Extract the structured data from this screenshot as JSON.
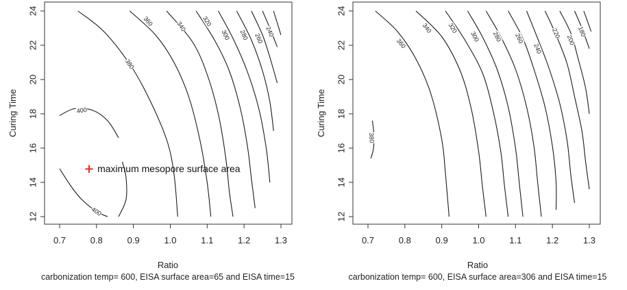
{
  "chart_data": [
    {
      "type": "contour",
      "xlabel": "Ratio",
      "ylabel": "Curing Time",
      "subtitle": "carbonization temp= 600, EISA surface area=65 and EISA time=15",
      "xlim": [
        0.7,
        1.3
      ],
      "ylim": [
        12,
        24
      ],
      "xticks": [
        "0.7",
        "0.8",
        "0.9",
        "1.0",
        "1.1",
        "1.2",
        "1.3"
      ],
      "yticks": [
        "12",
        "14",
        "16",
        "18",
        "20",
        "22",
        "24"
      ],
      "grid": false,
      "marker": {
        "x": 0.78,
        "y": 14.8,
        "symbol": "+",
        "color": "#e8291c",
        "label": "maximum mesopore surface area"
      },
      "contours": [
        {
          "level": "400",
          "label_at": [
            0.76,
            18.2
          ],
          "points": [
            [
              0.7,
              17.9
            ],
            [
              0.74,
              18.3
            ],
            [
              0.79,
              18.2
            ],
            [
              0.83,
              17.6
            ],
            [
              0.86,
              16.6
            ]
          ]
        },
        {
          "level": "400",
          "label_at": [
            0.8,
            12.3
          ],
          "points": [
            [
              0.7,
              14.8
            ],
            [
              0.73,
              13.8
            ],
            [
              0.76,
              13.0
            ],
            [
              0.8,
              12.3
            ],
            [
              0.83,
              12.0
            ]
          ]
        },
        {
          "level": "",
          "label_at": null,
          "points": [
            [
              0.86,
              12.0
            ],
            [
              0.88,
              13.0
            ],
            [
              0.88,
              14.3
            ],
            [
              0.87,
              15.2
            ]
          ]
        },
        {
          "level": "380",
          "label_at": [
            0.89,
            20.9
          ],
          "points": [
            [
              0.75,
              24.0
            ],
            [
              0.82,
              22.8
            ],
            [
              0.89,
              20.9
            ],
            [
              0.94,
              19.0
            ],
            [
              0.99,
              16.5
            ],
            [
              1.01,
              14.5
            ],
            [
              1.02,
              12.0
            ]
          ]
        },
        {
          "level": "360",
          "label_at": [
            0.94,
            23.4
          ],
          "points": [
            [
              0.89,
              24.0
            ],
            [
              0.96,
              22.6
            ],
            [
              1.01,
              21.0
            ],
            [
              1.05,
              19.0
            ],
            [
              1.08,
              16.5
            ],
            [
              1.1,
              14.0
            ],
            [
              1.11,
              12.0
            ]
          ]
        },
        {
          "level": "340",
          "label_at": [
            1.03,
            23.1
          ],
          "points": [
            [
              0.99,
              24.0
            ],
            [
              1.06,
              22.2
            ],
            [
              1.1,
              20.3
            ],
            [
              1.13,
              18.0
            ],
            [
              1.15,
              15.5
            ],
            [
              1.16,
              13.5
            ],
            [
              1.17,
              12.0
            ]
          ]
        },
        {
          "level": "320",
          "label_at": [
            1.1,
            23.4
          ],
          "points": [
            [
              1.07,
              24.0
            ],
            [
              1.12,
              22.3
            ],
            [
              1.16,
              20.5
            ],
            [
              1.19,
              18.3
            ],
            [
              1.21,
              16.0
            ],
            [
              1.22,
              14.2
            ],
            [
              1.23,
              12.5
            ]
          ]
        },
        {
          "level": "300",
          "label_at": [
            1.15,
            22.6
          ],
          "points": [
            [
              1.13,
              24.0
            ],
            [
              1.17,
              22.4
            ],
            [
              1.21,
              20.4
            ],
            [
              1.24,
              18.3
            ],
            [
              1.26,
              16.0
            ],
            [
              1.27,
              14.0
            ]
          ]
        },
        {
          "level": "280",
          "label_at": [
            1.2,
            22.6
          ],
          "points": [
            [
              1.18,
              24.0
            ],
            [
              1.22,
              22.3
            ],
            [
              1.25,
              20.5
            ],
            [
              1.27,
              18.7
            ],
            [
              1.28,
              17.0
            ]
          ]
        },
        {
          "level": "260",
          "label_at": [
            1.24,
            22.4
          ],
          "points": [
            [
              1.22,
              24.0
            ],
            [
              1.25,
              22.6
            ],
            [
              1.27,
              21.3
            ],
            [
              1.29,
              19.8
            ]
          ]
        },
        {
          "level": "240",
          "label_at": [
            1.27,
            22.8
          ],
          "points": [
            [
              1.25,
              24.0
            ],
            [
              1.27,
              23.0
            ],
            [
              1.29,
              21.9
            ]
          ]
        },
        {
          "level": "",
          "label_at": null,
          "points": [
            [
              1.28,
              24.0
            ],
            [
              1.29,
              23.3
            ],
            [
              1.3,
              22.6
            ]
          ]
        }
      ]
    },
    {
      "type": "contour",
      "xlabel": "Ratio",
      "ylabel": "Curing Time",
      "subtitle": "carbonization temp= 600, EISA surface area=306 and EISA time=15",
      "xlim": [
        0.7,
        1.3
      ],
      "ylim": [
        12,
        24
      ],
      "xticks": [
        "0.7",
        "0.8",
        "0.9",
        "1.0",
        "1.1",
        "1.2",
        "1.3"
      ],
      "yticks": [
        "12",
        "14",
        "16",
        "18",
        "20",
        "22",
        "24"
      ],
      "grid": false,
      "contours": [
        {
          "level": "380",
          "label_at": [
            0.71,
            16.6
          ],
          "points": [
            [
              0.712,
              17.6
            ],
            [
              0.716,
              16.8
            ],
            [
              0.715,
              16.0
            ],
            [
              0.708,
              15.4
            ]
          ]
        },
        {
          "level": "360",
          "label_at": [
            0.79,
            22.1
          ],
          "points": [
            [
              0.72,
              24.0
            ],
            [
              0.78,
              22.8
            ],
            [
              0.83,
              21.2
            ],
            [
              0.87,
              19.2
            ],
            [
              0.9,
              16.5
            ],
            [
              0.91,
              14.5
            ],
            [
              0.92,
              12.0
            ]
          ]
        },
        {
          "level": "340",
          "label_at": [
            0.86,
            23.0
          ],
          "points": [
            [
              0.83,
              24.0
            ],
            [
              0.9,
              22.5
            ],
            [
              0.95,
              20.5
            ],
            [
              0.98,
              18.3
            ],
            [
              1.0,
              15.8
            ],
            [
              1.01,
              13.8
            ],
            [
              1.02,
              12.0
            ]
          ]
        },
        {
          "level": "320",
          "label_at": [
            0.93,
            23.0
          ],
          "points": [
            [
              0.91,
              24.0
            ],
            [
              0.96,
              22.4
            ],
            [
              1.01,
              20.4
            ],
            [
              1.04,
              18.1
            ],
            [
              1.06,
              15.8
            ],
            [
              1.07,
              13.8
            ],
            [
              1.08,
              12.0
            ]
          ]
        },
        {
          "level": "300",
          "label_at": [
            0.99,
            22.5
          ],
          "points": [
            [
              0.97,
              24.0
            ],
            [
              1.01,
              22.5
            ],
            [
              1.05,
              20.6
            ],
            [
              1.08,
              18.4
            ],
            [
              1.1,
              16.0
            ],
            [
              1.11,
              14.0
            ],
            [
              1.12,
              12.0
            ]
          ]
        },
        {
          "level": "280",
          "label_at": [
            1.05,
            22.5
          ],
          "points": [
            [
              1.02,
              24.0
            ],
            [
              1.06,
              22.5
            ],
            [
              1.1,
              20.6
            ],
            [
              1.13,
              18.4
            ],
            [
              1.15,
              16.1
            ],
            [
              1.16,
              14.0
            ],
            [
              1.17,
              12.0
            ]
          ]
        },
        {
          "level": "260",
          "label_at": [
            1.11,
            22.4
          ],
          "points": [
            [
              1.08,
              24.0
            ],
            [
              1.12,
              22.4
            ],
            [
              1.15,
              20.6
            ],
            [
              1.18,
              18.4
            ],
            [
              1.2,
              16.1
            ],
            [
              1.21,
              14.0
            ],
            [
              1.21,
              12.4
            ]
          ]
        },
        {
          "level": "240",
          "label_at": [
            1.16,
            21.8
          ],
          "points": [
            [
              1.13,
              24.0
            ],
            [
              1.16,
              22.4
            ],
            [
              1.19,
              20.7
            ],
            [
              1.22,
              18.6
            ],
            [
              1.24,
              16.4
            ],
            [
              1.25,
              14.4
            ],
            [
              1.26,
              12.8
            ]
          ]
        },
        {
          "level": "220",
          "label_at": [
            1.21,
            22.7
          ],
          "points": [
            [
              1.18,
              24.0
            ],
            [
              1.21,
              22.6
            ],
            [
              1.24,
              20.9
            ],
            [
              1.26,
              19.0
            ],
            [
              1.28,
              17.0
            ],
            [
              1.29,
              15.2
            ],
            [
              1.3,
              13.6
            ]
          ]
        },
        {
          "level": "200",
          "label_at": [
            1.25,
            22.3
          ],
          "points": [
            [
              1.22,
              24.0
            ],
            [
              1.25,
              22.7
            ],
            [
              1.27,
              21.2
            ],
            [
              1.29,
              19.5
            ],
            [
              1.3,
              18.0
            ]
          ]
        },
        {
          "level": "180",
          "label_at": [
            1.28,
            22.8
          ],
          "points": [
            [
              1.26,
              24.0
            ],
            [
              1.28,
              23.0
            ],
            [
              1.3,
              21.8
            ]
          ]
        },
        {
          "level": "",
          "label_at": null,
          "points": [
            [
              1.285,
              24.0
            ],
            [
              1.295,
              23.4
            ],
            [
              1.305,
              22.8
            ]
          ]
        }
      ]
    }
  ]
}
